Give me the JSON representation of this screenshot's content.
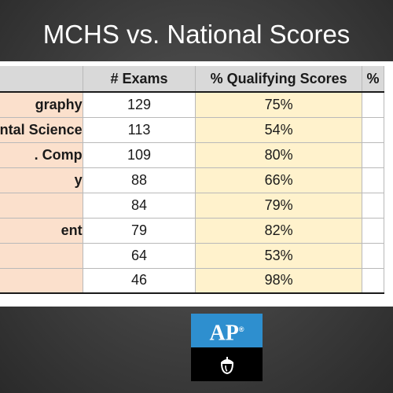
{
  "title": "MCHS vs. National Scores",
  "table": {
    "headers": [
      "",
      "# Exams",
      "% Qualifying Scores",
      "%"
    ],
    "rows": [
      {
        "subject": "graphy",
        "exams": "129",
        "pct": "75%"
      },
      {
        "subject": "ntal Science",
        "exams": "113",
        "pct": "54%"
      },
      {
        "subject": ". Comp",
        "exams": "109",
        "pct": "80%"
      },
      {
        "subject": "y",
        "exams": "88",
        "pct": "66%"
      },
      {
        "subject": "",
        "exams": "84",
        "pct": "79%"
      },
      {
        "subject": "ent",
        "exams": "79",
        "pct": "82%"
      },
      {
        "subject": "",
        "exams": "64",
        "pct": "53%"
      },
      {
        "subject": "",
        "exams": "46",
        "pct": "98%"
      }
    ]
  },
  "logo": {
    "text": "AP",
    "mark": "®",
    "icon": "acorn-icon"
  },
  "colors": {
    "subject_fill": "#fbe0cc",
    "pct_fill": "#fff2cc",
    "header_fill": "#d9d9d9",
    "logo_blue": "#2e8fcf"
  }
}
